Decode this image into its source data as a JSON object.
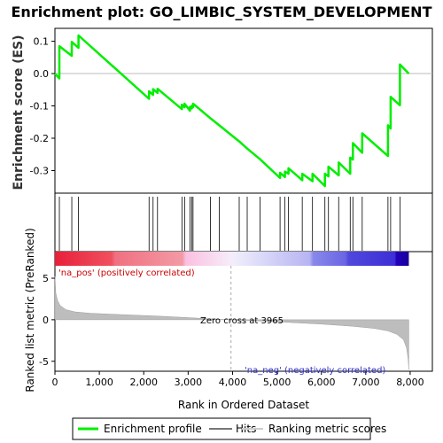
{
  "chart_data": {
    "type": "line",
    "title": "Enrichment plot: GO_LIMBIC_SYSTEM_DEVELOPMENT",
    "xlabel": "Rank in Ordered Dataset",
    "ylabel_top": "Enrichment score (ES)",
    "ylabel_bottom": "Ranked list metric (PreRanked)",
    "xlim": [
      0,
      8500
    ],
    "ylim_top": [
      -0.37,
      0.14
    ],
    "ylim_bottom": [
      -6.2,
      8.2
    ],
    "x_ticks": [
      "0",
      "1,000",
      "2,000",
      "3,000",
      "4,000",
      "5,000",
      "6,000",
      "7,000",
      "8,000"
    ],
    "x_tick_values": [
      0,
      1000,
      2000,
      3000,
      4000,
      5000,
      6000,
      7000,
      8000
    ],
    "y_ticks_top": [
      "0.1",
      "0.0",
      "-0.1",
      "-0.2",
      "-0.3"
    ],
    "y_tick_values_top": [
      0.1,
      0.0,
      -0.1,
      -0.2,
      -0.3
    ],
    "y_ticks_bottom": [
      "5",
      "0",
      "-5"
    ],
    "y_tick_values_bottom": [
      5,
      0,
      -5
    ],
    "zero_cross": 3965,
    "zero_cross_label": "Zero cross at 3965",
    "pos_label": "'na_pos' (positively correlated)",
    "neg_label": "'na_neg' (negatively correlated)",
    "n_genes": 7970,
    "hits": [
      100,
      380,
      530,
      2120,
      2210,
      2310,
      2860,
      2920,
      3040,
      3080,
      3110,
      3500,
      3700,
      4150,
      4330,
      4620,
      5070,
      5180,
      5260,
      5570,
      5800,
      6080,
      6160,
      6390,
      6650,
      6710,
      6920,
      7500,
      7560,
      7770
    ],
    "enrichment_profile": [
      [
        0,
        0.0
      ],
      [
        100,
        -0.015
      ],
      [
        100,
        0.085
      ],
      [
        380,
        0.055
      ],
      [
        380,
        0.098
      ],
      [
        530,
        0.08
      ],
      [
        530,
        0.118
      ],
      [
        2120,
        -0.078
      ],
      [
        2120,
        -0.055
      ],
      [
        2210,
        -0.066
      ],
      [
        2210,
        -0.048
      ],
      [
        2310,
        -0.06
      ],
      [
        2310,
        -0.047
      ],
      [
        2860,
        -0.11
      ],
      [
        2860,
        -0.096
      ],
      [
        2920,
        -0.104
      ],
      [
        2920,
        -0.093
      ],
      [
        3040,
        -0.115
      ],
      [
        3040,
        -0.103
      ],
      [
        3080,
        -0.108
      ],
      [
        3080,
        -0.1
      ],
      [
        3110,
        -0.104
      ],
      [
        3110,
        -0.093
      ],
      [
        3500,
        -0.138
      ],
      [
        3700,
        -0.16
      ],
      [
        4150,
        -0.21
      ],
      [
        4330,
        -0.232
      ],
      [
        4620,
        -0.265
      ],
      [
        5070,
        -0.323
      ],
      [
        5070,
        -0.307
      ],
      [
        5180,
        -0.32
      ],
      [
        5180,
        -0.303
      ],
      [
        5260,
        -0.31
      ],
      [
        5260,
        -0.293
      ],
      [
        5570,
        -0.33
      ],
      [
        5570,
        -0.31
      ],
      [
        5800,
        -0.333
      ],
      [
        5800,
        -0.31
      ],
      [
        6080,
        -0.348
      ],
      [
        6080,
        -0.31
      ],
      [
        6160,
        -0.318
      ],
      [
        6160,
        -0.288
      ],
      [
        6390,
        -0.315
      ],
      [
        6390,
        -0.275
      ],
      [
        6650,
        -0.31
      ],
      [
        6650,
        -0.26
      ],
      [
        6710,
        -0.266
      ],
      [
        6710,
        -0.215
      ],
      [
        6920,
        -0.245
      ],
      [
        6920,
        -0.185
      ],
      [
        7500,
        -0.255
      ],
      [
        7500,
        -0.16
      ],
      [
        7560,
        -0.17
      ],
      [
        7560,
        -0.072
      ],
      [
        7770,
        -0.098
      ],
      [
        7770,
        0.028
      ],
      [
        7970,
        0.0
      ]
    ],
    "metric_profile": [
      [
        0,
        5.2
      ],
      [
        20,
        3.2
      ],
      [
        60,
        2.3
      ],
      [
        120,
        1.7
      ],
      [
        250,
        1.2
      ],
      [
        450,
        0.95
      ],
      [
        800,
        0.78
      ],
      [
        1500,
        0.62
      ],
      [
        2300,
        0.45
      ],
      [
        3000,
        0.25
      ],
      [
        3600,
        0.08
      ],
      [
        3965,
        0.0
      ],
      [
        4500,
        -0.12
      ],
      [
        5200,
        -0.3
      ],
      [
        6000,
        -0.52
      ],
      [
        6700,
        -0.78
      ],
      [
        7200,
        -1.05
      ],
      [
        7500,
        -1.35
      ],
      [
        7700,
        -1.75
      ],
      [
        7850,
        -2.4
      ],
      [
        7920,
        -3.4
      ],
      [
        7955,
        -4.8
      ],
      [
        7970,
        -6.0
      ]
    ],
    "colors": {
      "enrichment_line": "#00ee00",
      "hit_lines": "#000000",
      "metric_fill": "#bdbdbd",
      "zero_line": "#aaaaaa",
      "positive_band": "#ff0000",
      "negative_band": "#0000ff"
    },
    "legend": [
      "Enrichment profile",
      "Hits",
      "Ranking metric scores"
    ],
    "legend_position": "bottom"
  }
}
